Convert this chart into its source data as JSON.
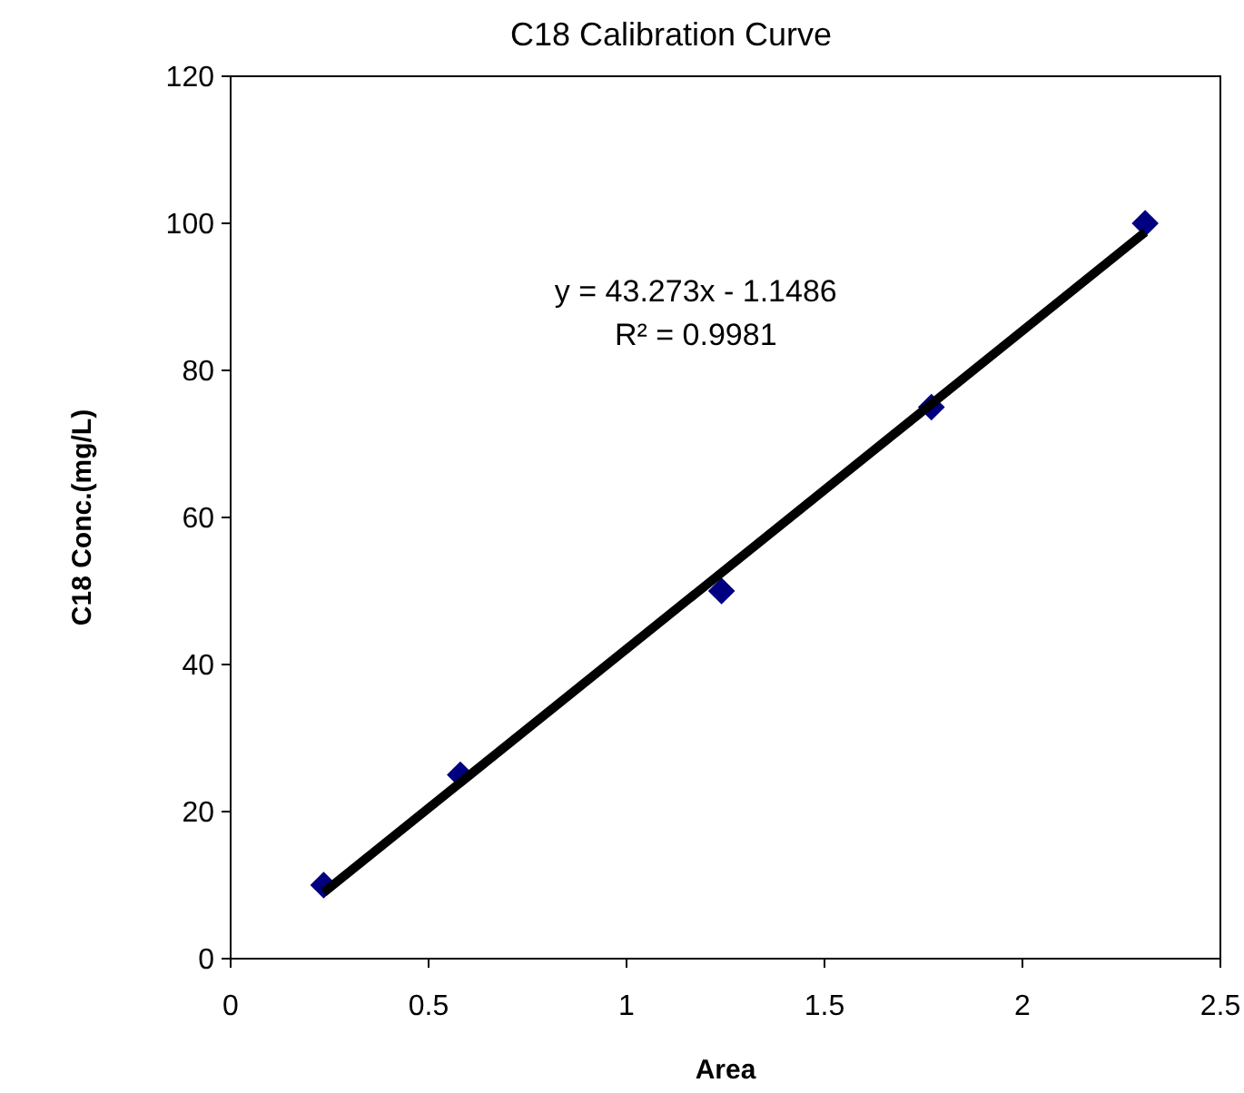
{
  "chart_data": {
    "type": "scatter",
    "title": "C18 Calibration Curve",
    "xlabel": "Area",
    "ylabel": "C18 Conc.(mg/L)",
    "xlim": [
      0,
      2.5
    ],
    "xticks": [
      0,
      0.5,
      1,
      1.5,
      2,
      2.5
    ],
    "ylim": [
      0,
      120
    ],
    "yticks": [
      0,
      20,
      40,
      60,
      80,
      100,
      120
    ],
    "grid": false,
    "marker": "diamond",
    "series": [
      {
        "type": "scatter",
        "color": "#000080",
        "x": [
          0.235,
          0.58,
          1.24,
          1.77,
          2.31
        ],
        "values": [
          10,
          25,
          50,
          75,
          100
        ]
      },
      {
        "type": "line",
        "color": "#000000",
        "marker": "none",
        "line_style": "solid",
        "x": [
          0.235,
          2.31
        ],
        "values": [
          9.0,
          98.8
        ]
      }
    ],
    "annotations": [
      "y = 43.273x - 1.1486",
      "R² = 0.9981"
    ]
  }
}
